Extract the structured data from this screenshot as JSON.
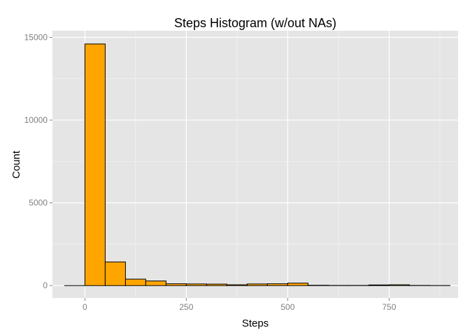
{
  "chart_data": {
    "type": "bar",
    "title": "Steps Histogram (w/out NAs)",
    "xlabel": "Steps",
    "ylabel": "Count",
    "xlim": [
      -80,
      920
    ],
    "ylim": [
      -750,
      15400
    ],
    "bin_width": 50,
    "bins": [
      {
        "start": -50,
        "end": 0,
        "count": 0
      },
      {
        "start": 0,
        "end": 50,
        "count": 14600
      },
      {
        "start": 50,
        "end": 100,
        "count": 1430
      },
      {
        "start": 100,
        "end": 150,
        "count": 390
      },
      {
        "start": 150,
        "end": 200,
        "count": 280
      },
      {
        "start": 200,
        "end": 250,
        "count": 110
      },
      {
        "start": 250,
        "end": 300,
        "count": 100
      },
      {
        "start": 300,
        "end": 350,
        "count": 90
      },
      {
        "start": 350,
        "end": 400,
        "count": 50
      },
      {
        "start": 400,
        "end": 450,
        "count": 100
      },
      {
        "start": 450,
        "end": 500,
        "count": 110
      },
      {
        "start": 500,
        "end": 550,
        "count": 150
      },
      {
        "start": 550,
        "end": 600,
        "count": 20
      },
      {
        "start": 600,
        "end": 650,
        "count": 10
      },
      {
        "start": 650,
        "end": 700,
        "count": 10
      },
      {
        "start": 700,
        "end": 750,
        "count": 40
      },
      {
        "start": 750,
        "end": 800,
        "count": 50
      },
      {
        "start": 800,
        "end": 850,
        "count": 10
      },
      {
        "start": 850,
        "end": 900,
        "count": 5
      }
    ],
    "x_ticks": [
      0,
      250,
      500,
      750
    ],
    "x_tick_labels": [
      "0",
      "250",
      "500",
      "750"
    ],
    "y_ticks": [
      0,
      5000,
      10000,
      15000
    ],
    "y_tick_labels": [
      "0",
      "5000",
      "10000",
      "15000"
    ],
    "grid": true,
    "colors": {
      "fill": "#FFA500",
      "stroke": "#000000",
      "panel": "#E5E5E5",
      "grid_major": "#FFFFFF",
      "grid_minor": "#F2F2F2"
    }
  }
}
